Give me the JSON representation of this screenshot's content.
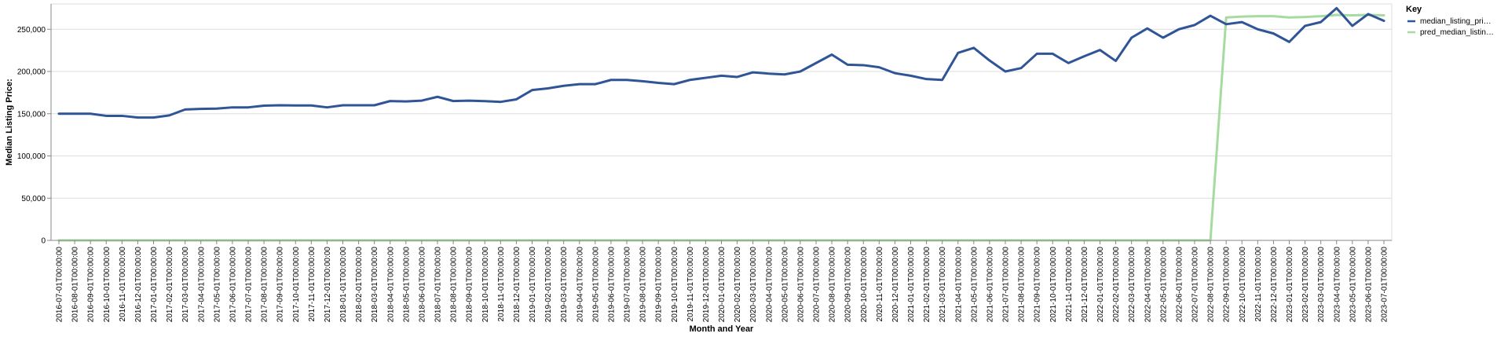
{
  "chart_data": {
    "type": "line",
    "xlabel": "Month and Year",
    "ylabel": "Median Listing Price:",
    "ylim": [
      0,
      280000
    ],
    "yticks": [
      "0",
      "50,000",
      "100,000",
      "150,000",
      "200,000",
      "250,000"
    ],
    "ytick_values": [
      0,
      50000,
      100000,
      150000,
      200000,
      250000
    ],
    "grid": true,
    "legend": {
      "title": "Key",
      "placement": "top-right"
    },
    "x": [
      "2016-07-01T00:00:00",
      "2016-08-01T00:00:00",
      "2016-09-01T00:00:00",
      "2016-10-01T00:00:00",
      "2016-11-01T00:00:00",
      "2016-12-01T00:00:00",
      "2017-01-01T00:00:00",
      "2017-02-01T00:00:00",
      "2017-03-01T00:00:00",
      "2017-04-01T00:00:00",
      "2017-05-01T00:00:00",
      "2017-06-01T00:00:00",
      "2017-07-01T00:00:00",
      "2017-08-01T00:00:00",
      "2017-09-01T00:00:00",
      "2017-10-01T00:00:00",
      "2017-11-01T00:00:00",
      "2017-12-01T00:00:00",
      "2018-01-01T00:00:00",
      "2018-02-01T00:00:00",
      "2018-03-01T00:00:00",
      "2018-04-01T00:00:00",
      "2018-05-01T00:00:00",
      "2018-06-01T00:00:00",
      "2018-07-01T00:00:00",
      "2018-08-01T00:00:00",
      "2018-09-01T00:00:00",
      "2018-10-01T00:00:00",
      "2018-11-01T00:00:00",
      "2018-12-01T00:00:00",
      "2019-01-01T00:00:00",
      "2019-02-01T00:00:00",
      "2019-03-01T00:00:00",
      "2019-04-01T00:00:00",
      "2019-05-01T00:00:00",
      "2019-06-01T00:00:00",
      "2019-07-01T00:00:00",
      "2019-08-01T00:00:00",
      "2019-09-01T00:00:00",
      "2019-10-01T00:00:00",
      "2019-11-01T00:00:00",
      "2019-12-01T00:00:00",
      "2020-01-01T00:00:00",
      "2020-02-01T00:00:00",
      "2020-03-01T00:00:00",
      "2020-04-01T00:00:00",
      "2020-05-01T00:00:00",
      "2020-06-01T00:00:00",
      "2020-07-01T00:00:00",
      "2020-08-01T00:00:00",
      "2020-09-01T00:00:00",
      "2020-10-01T00:00:00",
      "2020-11-01T00:00:00",
      "2020-12-01T00:00:00",
      "2021-01-01T00:00:00",
      "2021-02-01T00:00:00",
      "2021-03-01T00:00:00",
      "2021-04-01T00:00:00",
      "2021-05-01T00:00:00",
      "2021-06-01T00:00:00",
      "2021-07-01T00:00:00",
      "2021-08-01T00:00:00",
      "2021-09-01T00:00:00",
      "2021-10-01T00:00:00",
      "2021-11-01T00:00:00",
      "2021-12-01T00:00:00",
      "2022-01-01T00:00:00",
      "2022-02-01T00:00:00",
      "2022-03-01T00:00:00",
      "2022-04-01T00:00:00",
      "2022-05-01T00:00:00",
      "2022-06-01T00:00:00",
      "2022-07-01T00:00:00",
      "2022-08-01T00:00:00",
      "2022-09-01T00:00:00",
      "2022-10-01T00:00:00",
      "2022-11-01T00:00:00",
      "2022-12-01T00:00:00",
      "2023-01-01T00:00:00",
      "2023-02-01T00:00:00",
      "2023-03-01T00:00:00",
      "2023-04-01T00:00:00",
      "2023-05-01T00:00:00",
      "2023-06-01T00:00:00",
      "2023-07-01T00:00:00"
    ],
    "series": [
      {
        "name": "median_listing_pri…",
        "color": "#2f5597",
        "values": [
          150000,
          150000,
          150000,
          147500,
          147500,
          145500,
          145500,
          148000,
          155000,
          155700,
          156000,
          157500,
          157500,
          159500,
          160000,
          159800,
          159800,
          157500,
          160000,
          160000,
          160000,
          165000,
          164500,
          165500,
          170000,
          165000,
          165500,
          164900,
          164000,
          167000,
          178000,
          180000,
          183000,
          185000,
          185000,
          190000,
          190000,
          188500,
          186500,
          185000,
          190000,
          192500,
          195000,
          193500,
          199000,
          197500,
          196500,
          200000,
          210000,
          220000,
          208000,
          207500,
          205000,
          198000,
          195000,
          191000,
          190000,
          222000,
          228000,
          213000,
          200000,
          204000,
          221000,
          221000,
          210000,
          218000,
          225500,
          212500,
          240000,
          251000,
          240000,
          250000,
          255000,
          266000,
          256000,
          258500,
          250000,
          245000,
          235000,
          254000,
          258500,
          275000,
          254000,
          268000,
          260000
        ]
      },
      {
        "name": "pred_median_listin…",
        "color": "#a6dba0",
        "values": [
          0,
          0,
          0,
          0,
          0,
          0,
          0,
          0,
          0,
          0,
          0,
          0,
          0,
          0,
          0,
          0,
          0,
          0,
          0,
          0,
          0,
          0,
          0,
          0,
          0,
          0,
          0,
          0,
          0,
          0,
          0,
          0,
          0,
          0,
          0,
          0,
          0,
          0,
          0,
          0,
          0,
          0,
          0,
          0,
          0,
          0,
          0,
          0,
          0,
          0,
          0,
          0,
          0,
          0,
          0,
          0,
          0,
          0,
          0,
          0,
          0,
          0,
          0,
          0,
          0,
          0,
          0,
          0,
          0,
          0,
          0,
          0,
          0,
          0,
          264000,
          265000,
          265500,
          265500,
          264000,
          264500,
          265500,
          267000,
          266500,
          267000,
          266500
        ]
      }
    ]
  }
}
